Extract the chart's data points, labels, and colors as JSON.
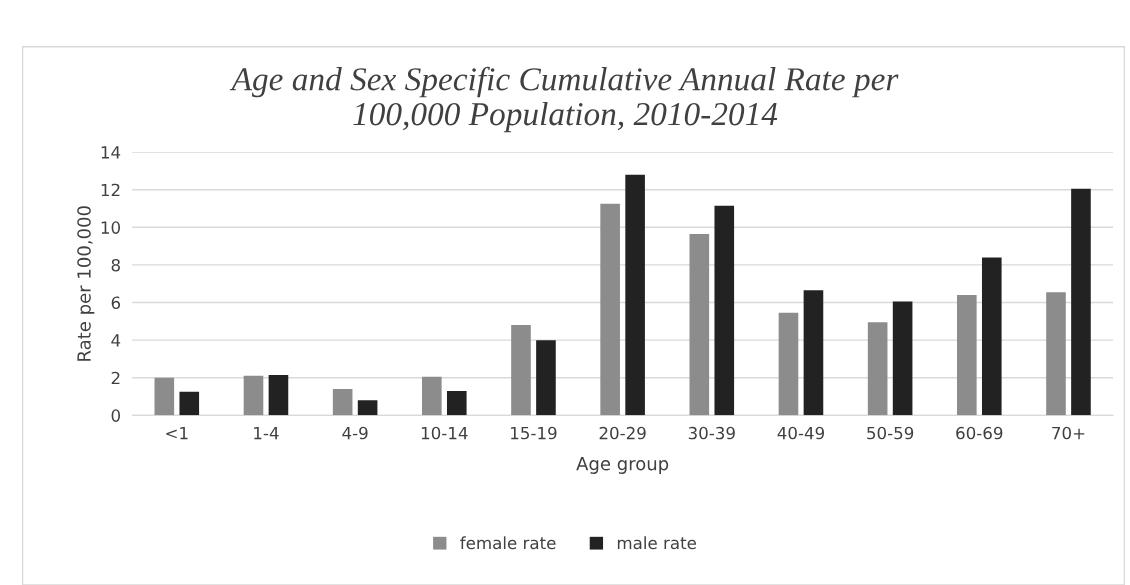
{
  "chart_data": {
    "type": "bar",
    "title": "Age and Sex Specific Cumulative Annual Rate per\n100,000 Population, 2010-2014",
    "xlabel": "Age group",
    "ylabel": "Rate per 100,000",
    "categories": [
      "<1",
      "1-4",
      "4-9",
      "10-14",
      "15-19",
      "20-29",
      "30-39",
      "40-49",
      "50-59",
      "60-69",
      "70+"
    ],
    "series": [
      {
        "name": "female rate",
        "color": "#8c8c8c",
        "values": [
          2.0,
          2.1,
          1.4,
          2.05,
          4.8,
          11.25,
          9.65,
          5.45,
          4.95,
          6.4,
          6.55
        ]
      },
      {
        "name": "male rate",
        "color": "#222222",
        "values": [
          1.25,
          2.15,
          0.8,
          1.3,
          4.0,
          12.8,
          11.15,
          6.65,
          6.05,
          8.4,
          12.05
        ]
      }
    ],
    "ylim": [
      0,
      14
    ],
    "yticks": [
      0,
      2,
      4,
      6,
      8,
      10,
      12,
      14
    ],
    "grid": "y",
    "legend": "bottom"
  }
}
